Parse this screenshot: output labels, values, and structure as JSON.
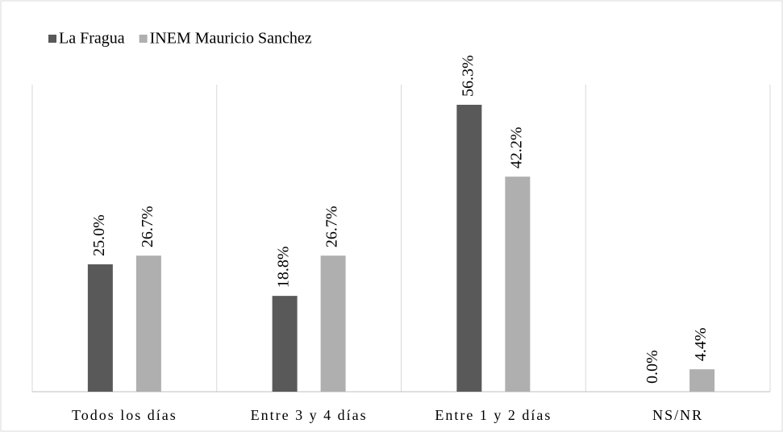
{
  "chart_data": {
    "type": "bar",
    "categories": [
      "Todos los días",
      "Entre 3 y 4 días",
      "Entre 1 y 2 días",
      "NS/NR"
    ],
    "series": [
      {
        "name": "La Fragua",
        "color": "#595959",
        "values": [
          25.0,
          18.8,
          56.3,
          0.0
        ],
        "value_labels": [
          "25.0%",
          "18.8%",
          "56.3%",
          "0.0%"
        ]
      },
      {
        "name": "INEM Mauricio Sanchez",
        "color": "#afafaf",
        "values": [
          26.7,
          26.7,
          42.2,
          4.4
        ],
        "value_labels": [
          "26.7%",
          "26.7%",
          "42.2%",
          "4.4%"
        ]
      }
    ],
    "legend": "top-left"
  }
}
